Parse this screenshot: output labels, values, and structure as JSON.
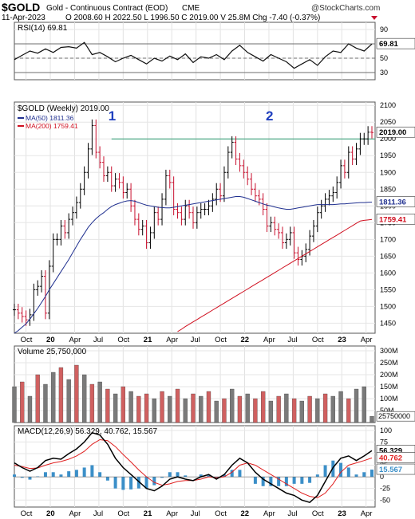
{
  "header": {
    "symbol": "$GOLD",
    "description": "Gold - Continuous Contract (EOD)",
    "exchange": "CME",
    "date": "11-Apr-2023",
    "quote": "O 2008.60  H 2022.50  L 1996.50  C 2019.00  V 25.8M  Chg -7.40 (-0.37%)",
    "watermark": "@StockCharts.com"
  },
  "colors": {
    "up_bar": "#000000",
    "down_bar": "#c8102e",
    "ma50": "#1f2f8f",
    "ma200": "#d01020",
    "macd_line": "#000000",
    "signal_line": "#e02020",
    "histogram": "#3b8fc8",
    "resistance": "#2a9a70",
    "volume_up": "#7a7a7a",
    "volume_down": "#d06060",
    "annotation": "#1f3fbf"
  },
  "x_labels": [
    "Oct",
    "20",
    "Apr",
    "Jul",
    "Oct",
    "21",
    "Apr",
    "Jul",
    "Oct",
    "22",
    "Apr",
    "Jul",
    "Oct",
    "23",
    "Apr"
  ],
  "chart_data": [
    {
      "type": "line",
      "name": "rsi",
      "title": "RSI(14) 69.81",
      "yticks": [
        30,
        50,
        70,
        90
      ],
      "ylim": [
        20,
        100
      ],
      "reference_lines": [
        70,
        50,
        30
      ],
      "last_value": "69.81",
      "x": [
        0,
        4,
        8,
        12,
        16,
        20,
        24,
        28,
        32,
        36,
        40,
        44,
        48,
        52,
        56,
        60,
        64,
        68,
        72,
        76,
        80,
        84,
        88,
        92,
        96,
        100,
        104,
        108,
        112,
        116,
        120,
        124,
        128,
        132,
        136,
        140,
        144,
        148,
        152,
        156,
        160,
        164,
        168,
        172,
        176,
        180,
        184
      ],
      "values": [
        48,
        54,
        60,
        57,
        63,
        58,
        65,
        66,
        64,
        72,
        55,
        58,
        52,
        45,
        50,
        54,
        48,
        42,
        50,
        46,
        53,
        48,
        56,
        44,
        52,
        50,
        55,
        48,
        60,
        68,
        58,
        52,
        46,
        55,
        50,
        45,
        36,
        42,
        48,
        40,
        52,
        60,
        58,
        70,
        64,
        60,
        69.81
      ]
    },
    {
      "type": "line",
      "name": "price",
      "title": "$GOLD (Weekly) 2019.00",
      "legend": [
        {
          "name": "MA(50) 1811.36",
          "color": "#1f2f8f"
        },
        {
          "name": "MA(200) 1759.41",
          "color": "#d01020"
        }
      ],
      "yticks": [
        1450,
        1500,
        1550,
        1600,
        1650,
        1700,
        1750,
        1800,
        1850,
        1900,
        1950,
        2000,
        2050,
        2100
      ],
      "ylim": [
        1420,
        2110
      ],
      "resistance": 2000,
      "last_labels": {
        "price": "2019.00",
        "ma50": "1811.36",
        "ma200": "1759.41"
      },
      "annotations": [
        {
          "text": "1",
          "x": 50
        },
        {
          "text": "2",
          "x": 131
        }
      ],
      "x": [
        0,
        2,
        4,
        6,
        8,
        10,
        12,
        14,
        16,
        18,
        20,
        22,
        24,
        26,
        28,
        30,
        32,
        34,
        36,
        38,
        40,
        42,
        44,
        46,
        48,
        50,
        52,
        54,
        56,
        58,
        60,
        62,
        64,
        66,
        68,
        70,
        72,
        74,
        76,
        78,
        80,
        82,
        84,
        86,
        88,
        90,
        92,
        94,
        96,
        98,
        100,
        102,
        104,
        106,
        108,
        110,
        112,
        114,
        116,
        118,
        120,
        122,
        124,
        126,
        128,
        130,
        132,
        134,
        136,
        138,
        140,
        142,
        144,
        146,
        148,
        150,
        152,
        154,
        156,
        158,
        160,
        162,
        164,
        166,
        168,
        170,
        172,
        174,
        176,
        178,
        180,
        182,
        184
      ],
      "close": [
        1490,
        1480,
        1470,
        1460,
        1475,
        1550,
        1560,
        1590,
        1480,
        1620,
        1700,
        1700,
        1740,
        1720,
        1760,
        1780,
        1810,
        1850,
        1900,
        1970,
        2040,
        1960,
        1930,
        1890,
        1900,
        1860,
        1880,
        1870,
        1840,
        1850,
        1800,
        1760,
        1730,
        1740,
        1690,
        1720,
        1780,
        1760,
        1820,
        1890,
        1870,
        1790,
        1780,
        1760,
        1800,
        1780,
        1750,
        1780,
        1790,
        1790,
        1800,
        1820,
        1850,
        1830,
        1900,
        1960,
        1990,
        1940,
        1920,
        1900,
        1880,
        1850,
        1830,
        1820,
        1790,
        1740,
        1750,
        1730,
        1720,
        1690,
        1700,
        1720,
        1660,
        1640,
        1650,
        1670,
        1710,
        1740,
        1780,
        1800,
        1820,
        1830,
        1840,
        1870,
        1920,
        1900,
        1960,
        1940,
        1970,
        2000,
        2000,
        2020,
        2019
      ],
      "ma50": [
        1420,
        1428,
        1438,
        1448,
        1462,
        1478,
        1494,
        1512,
        1530,
        1550,
        1568,
        1586,
        1604,
        1622,
        1640,
        1660,
        1680,
        1700,
        1718,
        1736,
        1750,
        1762,
        1772,
        1780,
        1790,
        1798,
        1804,
        1808,
        1812,
        1815,
        1816,
        1814,
        1810,
        1806,
        1802,
        1800,
        1798,
        1796,
        1795,
        1794,
        1794,
        1796,
        1798,
        1800,
        1802,
        1804,
        1806,
        1808,
        1810,
        1812,
        1814,
        1816,
        1818,
        1820,
        1822,
        1824,
        1826,
        1828,
        1828,
        1826,
        1822,
        1818,
        1814,
        1810,
        1806,
        1802,
        1800,
        1797,
        1794,
        1792,
        1790,
        1790,
        1792,
        1794,
        1796,
        1798,
        1800,
        1802,
        1804,
        1804,
        1804,
        1804,
        1804,
        1805,
        1806,
        1806,
        1807,
        1808,
        1809,
        1810,
        1810,
        1811,
        1811.36
      ],
      "ma200": [
        null,
        null,
        null,
        null,
        null,
        null,
        null,
        null,
        null,
        null,
        null,
        null,
        null,
        null,
        null,
        null,
        null,
        null,
        null,
        null,
        null,
        null,
        null,
        null,
        null,
        null,
        null,
        null,
        null,
        null,
        null,
        null,
        null,
        null,
        null,
        null,
        null,
        null,
        null,
        null,
        null,
        null,
        1425,
        1432,
        1440,
        1447,
        1454,
        1461,
        1468,
        1475,
        1482,
        1489,
        1496,
        1503,
        1510,
        1517,
        1524,
        1531,
        1538,
        1545,
        1552,
        1559,
        1566,
        1573,
        1580,
        1587,
        1594,
        1601,
        1608,
        1615,
        1622,
        1629,
        1636,
        1643,
        1650,
        1657,
        1664,
        1671,
        1678,
        1685,
        1692,
        1699,
        1706,
        1713,
        1720,
        1727,
        1734,
        1741,
        1748,
        1755,
        1757,
        1758,
        1759.41
      ]
    },
    {
      "type": "bar",
      "name": "volume",
      "title": "Volume 25,750,000",
      "yticks": [
        50,
        100,
        150,
        200,
        250,
        300
      ],
      "ytick_suffix": "M",
      "ylim": [
        0,
        320
      ],
      "last_value": "25750000",
      "x": [
        0,
        4,
        8,
        12,
        16,
        20,
        24,
        28,
        32,
        36,
        40,
        44,
        48,
        52,
        56,
        60,
        64,
        68,
        72,
        76,
        80,
        84,
        88,
        92,
        96,
        100,
        104,
        108,
        112,
        116,
        120,
        124,
        128,
        132,
        136,
        140,
        144,
        148,
        152,
        156,
        160,
        164,
        168,
        172,
        176,
        180,
        184
      ],
      "values": [
        150,
        170,
        110,
        200,
        160,
        210,
        230,
        180,
        240,
        200,
        160,
        170,
        140,
        120,
        150,
        130,
        110,
        120,
        100,
        130,
        110,
        140,
        100,
        120,
        110,
        130,
        90,
        100,
        140,
        110,
        120,
        100,
        130,
        90,
        110,
        120,
        100,
        90,
        110,
        100,
        120,
        110,
        130,
        100,
        140,
        150,
        26
      ],
      "up": [
        true,
        false,
        true,
        false,
        true,
        true,
        false,
        true,
        false,
        true,
        false,
        true,
        false,
        true,
        false,
        true,
        false,
        false,
        true,
        false,
        true,
        false,
        true,
        false,
        true,
        false,
        true,
        false,
        true,
        false,
        true,
        false,
        false,
        true,
        false,
        true,
        false,
        true,
        false,
        true,
        false,
        true,
        true,
        false,
        true,
        true,
        true
      ]
    },
    {
      "type": "line",
      "name": "macd",
      "title": "MACD(12,26,9) 56.329, 40.762, 15.567",
      "yticks": [
        -50,
        -25,
        0,
        25,
        50,
        75,
        100
      ],
      "ylim": [
        -65,
        110
      ],
      "last_labels": {
        "macd": "56.329",
        "signal": "40.762",
        "hist": "15.567"
      },
      "x": [
        0,
        4,
        8,
        12,
        16,
        20,
        24,
        28,
        32,
        36,
        40,
        44,
        48,
        52,
        56,
        60,
        64,
        68,
        72,
        76,
        80,
        84,
        88,
        92,
        96,
        100,
        104,
        108,
        112,
        116,
        120,
        124,
        128,
        132,
        136,
        140,
        144,
        148,
        152,
        156,
        160,
        164,
        168,
        172,
        176,
        180,
        184
      ],
      "macd": [
        30,
        20,
        12,
        20,
        35,
        40,
        38,
        50,
        60,
        75,
        95,
        90,
        70,
        40,
        20,
        5,
        -10,
        -25,
        -30,
        -20,
        -5,
        0,
        -5,
        -8,
        0,
        5,
        -5,
        5,
        25,
        40,
        30,
        10,
        -5,
        -15,
        -25,
        -35,
        -40,
        -50,
        -55,
        -40,
        -10,
        20,
        40,
        45,
        35,
        45,
        56.329
      ],
      "signal": [
        25,
        22,
        18,
        19,
        25,
        30,
        33,
        38,
        45,
        55,
        70,
        80,
        78,
        65,
        48,
        32,
        15,
        0,
        -12,
        -18,
        -15,
        -10,
        -8,
        -8,
        -5,
        0,
        -2,
        0,
        10,
        25,
        30,
        25,
        15,
        5,
        -5,
        -15,
        -25,
        -35,
        -42,
        -45,
        -35,
        -15,
        10,
        25,
        30,
        35,
        40.762
      ]
    }
  ]
}
